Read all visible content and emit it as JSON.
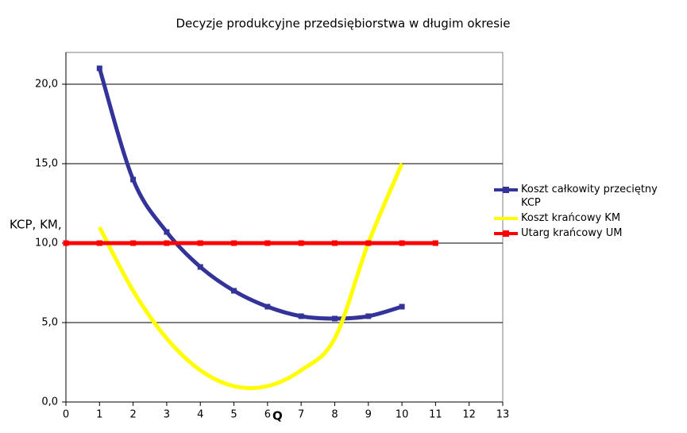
{
  "chart_data": {
    "type": "line",
    "title": "Decyzje produkcyjne przedsiębiorstwa w długim okresie",
    "x_label": "Q",
    "y_label": "KCP, KM, UM",
    "xlim": [
      0,
      13
    ],
    "xticks": [
      0,
      1,
      2,
      3,
      4,
      5,
      6,
      7,
      8,
      9,
      10,
      11,
      12,
      13
    ],
    "ylim": [
      0,
      22
    ],
    "yticks": [
      {
        "value": 0,
        "label": "0,0"
      },
      {
        "value": 5,
        "label": "5,0"
      },
      {
        "value": 10,
        "label": "10,0"
      },
      {
        "value": 15,
        "label": "15,0"
      },
      {
        "value": 20,
        "label": "20,0"
      }
    ],
    "grid": true,
    "legend": "right",
    "series": [
      {
        "name": "Koszt całkowity przeciętny KCP",
        "color": "#333399",
        "markers": true,
        "x": [
          1,
          2,
          3,
          4,
          5,
          6,
          7,
          8,
          9,
          10
        ],
        "values": [
          21,
          14,
          10.7,
          8.5,
          7,
          6,
          5.4,
          5.25,
          5.4,
          6
        ]
      },
      {
        "name": "Koszt krańcowy KM",
        "color": "#ffff00",
        "markers": false,
        "x": [
          1,
          2,
          3,
          4,
          5,
          6,
          7,
          8,
          9,
          10
        ],
        "values": [
          11,
          7,
          4,
          2,
          1,
          1,
          2,
          4,
          10,
          15
        ]
      },
      {
        "name": "Utarg krańcowy UM",
        "color": "#ff0000",
        "markers": true,
        "x": [
          0,
          1,
          2,
          3,
          4,
          5,
          6,
          7,
          8,
          9,
          10,
          11
        ],
        "values": [
          10,
          10,
          10,
          10,
          10,
          10,
          10,
          10,
          10,
          10,
          10,
          10
        ]
      }
    ]
  }
}
